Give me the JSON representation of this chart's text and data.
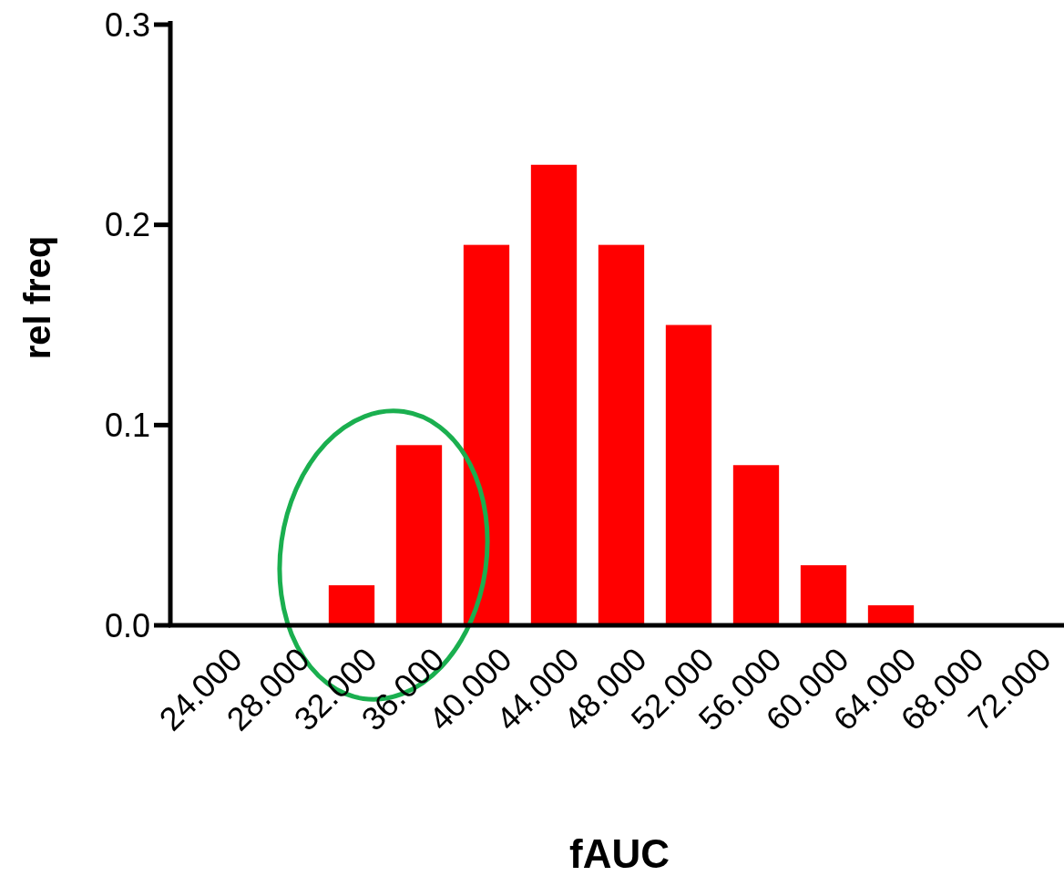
{
  "chart_data": {
    "type": "bar",
    "xlabel": "fAUC",
    "ylabel": "rel freq",
    "categories": [
      "24.000",
      "28.000",
      "32.000",
      "36.000",
      "40.000",
      "44.000",
      "48.000",
      "52.000",
      "56.000",
      "60.000",
      "64.000",
      "68.000",
      "72.000"
    ],
    "values": [
      0,
      0,
      0.02,
      0.09,
      0.19,
      0.23,
      0.19,
      0.15,
      0.08,
      0.03,
      0.01,
      0,
      0
    ],
    "color": "#ff0000",
    "ylim": [
      0,
      0.3
    ],
    "yticks": [
      {
        "value": 0,
        "label": "0.0"
      },
      {
        "value": 0.1,
        "label": "0.1"
      },
      {
        "value": 0.2,
        "label": "0.2"
      },
      {
        "value": 0.3,
        "label": "0.3"
      }
    ],
    "grid": false
  }
}
